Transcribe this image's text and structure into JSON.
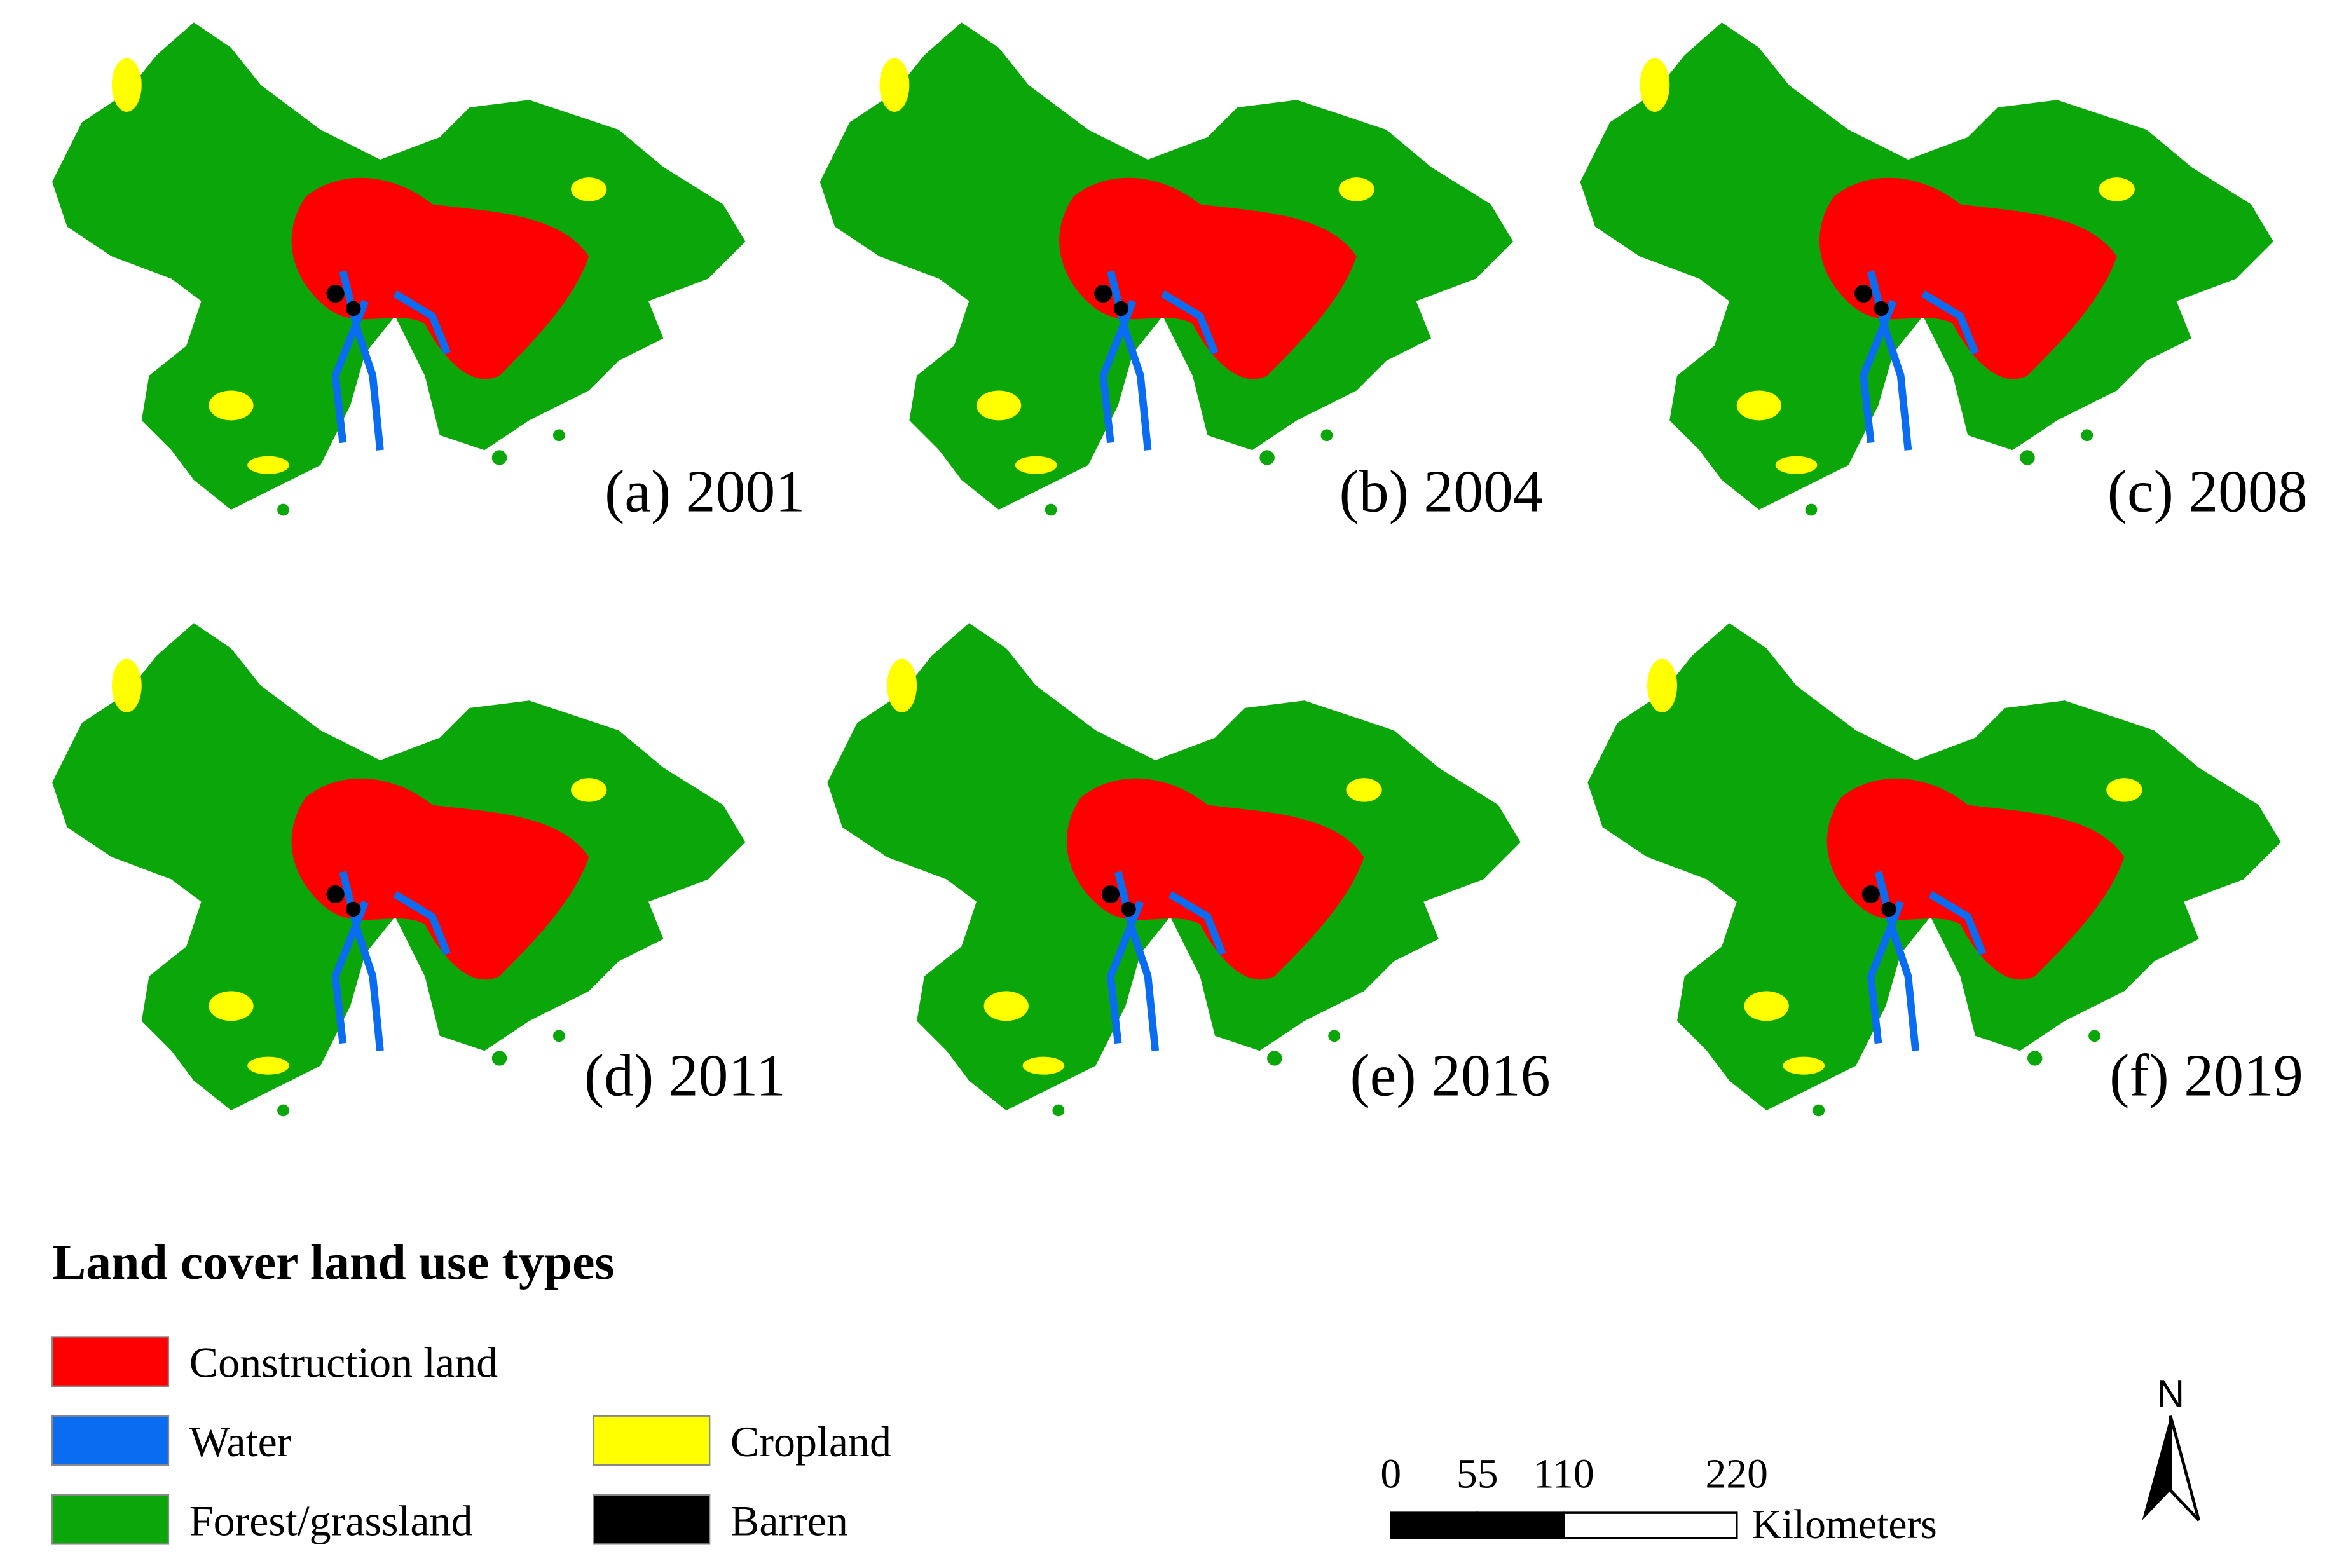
{
  "panels": [
    {
      "label": "(a) 2001"
    },
    {
      "label": "(b) 2004"
    },
    {
      "label": "(c) 2008"
    },
    {
      "label": "(d) 2011"
    },
    {
      "label": "(e) 2016"
    },
    {
      "label": "(f) 2019"
    }
  ],
  "legend": {
    "title": "Land cover land use  types",
    "items": [
      {
        "label": "Construction land",
        "color": "#ff0000"
      },
      {
        "label": "Water",
        "color": "#0a6cf0"
      },
      {
        "label": "Forest/grassland",
        "color": "#0aa60a"
      },
      {
        "label": "Cropland",
        "color": "#ffff00"
      },
      {
        "label": "Barren",
        "color": "#000000"
      }
    ]
  },
  "scale_bar": {
    "ticks": [
      0,
      55,
      110,
      220
    ],
    "unit": "Kilometers"
  },
  "north_arrow": "N"
}
